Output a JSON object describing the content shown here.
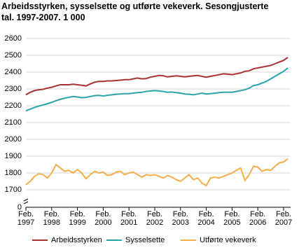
{
  "chart_data": {
    "type": "line",
    "title": "Arbeidsstyrken, sysselsette og utførte vekeverk. Sesongjusterte tal. 1997-2007. 1 000",
    "categories": [
      "Feb. 1997",
      null,
      null,
      null,
      null,
      null,
      "Feb. 1998",
      null,
      null,
      null,
      null,
      null,
      "Feb. 1999",
      null,
      null,
      null,
      null,
      null,
      "Feb. 2000",
      null,
      null,
      null,
      null,
      null,
      "Feb. 2001",
      null,
      null,
      null,
      null,
      null,
      "Feb. 2002",
      null,
      null,
      null,
      null,
      null,
      "Feb. 2003",
      null,
      null,
      null,
      null,
      null,
      "Feb. 2004",
      null,
      null,
      null,
      null,
      null,
      "Feb. 2005",
      null,
      null,
      null,
      null,
      null,
      "Feb. 2006",
      null,
      null,
      null,
      null,
      null,
      "Feb. 2007",
      null
    ],
    "series": [
      {
        "name": "Arbeidsstyrken",
        "color": "#a8322e",
        "values": [
          2265,
          2280,
          2290,
          2295,
          2298,
          2305,
          2310,
          2318,
          2325,
          2325,
          2325,
          2328,
          2325,
          2322,
          2318,
          2330,
          2340,
          2345,
          2345,
          2348,
          2348,
          2350,
          2352,
          2355,
          2355,
          2360,
          2365,
          2360,
          2362,
          2370,
          2375,
          2380,
          2378,
          2372,
          2375,
          2378,
          2375,
          2372,
          2375,
          2378,
          2380,
          2375,
          2370,
          2375,
          2380,
          2385,
          2390,
          2388,
          2385,
          2390,
          2395,
          2405,
          2408,
          2420,
          2425,
          2430,
          2435,
          2440,
          2450,
          2460,
          2470,
          2488
        ]
      },
      {
        "name": "Sysselsette",
        "color": "#2aa3ab",
        "values": [
          2170,
          2180,
          2190,
          2198,
          2205,
          2212,
          2220,
          2230,
          2238,
          2245,
          2250,
          2255,
          2252,
          2248,
          2250,
          2255,
          2260,
          2262,
          2258,
          2262,
          2265,
          2268,
          2270,
          2272,
          2272,
          2275,
          2278,
          2280,
          2285,
          2288,
          2290,
          2288,
          2285,
          2280,
          2282,
          2278,
          2275,
          2270,
          2268,
          2265,
          2270,
          2275,
          2270,
          2272,
          2275,
          2278,
          2280,
          2280,
          2280,
          2285,
          2290,
          2295,
          2305,
          2320,
          2325,
          2335,
          2345,
          2360,
          2375,
          2390,
          2405,
          2425
        ]
      },
      {
        "name": "Utførte vekeverk",
        "color": "#f5ae4a",
        "values": [
          1730,
          1750,
          1780,
          1795,
          1790,
          1770,
          1800,
          1850,
          1830,
          1810,
          1815,
          1800,
          1820,
          1800,
          1765,
          1790,
          1810,
          1800,
          1805,
          1785,
          1790,
          1805,
          1810,
          1790,
          1800,
          1805,
          1790,
          1775,
          1790,
          1785,
          1790,
          1780,
          1770,
          1785,
          1775,
          1760,
          1750,
          1770,
          1790,
          1760,
          1770,
          1740,
          1725,
          1770,
          1775,
          1770,
          1780,
          1790,
          1800,
          1815,
          1830,
          1755,
          1790,
          1840,
          1835,
          1810,
          1820,
          1815,
          1840,
          1860,
          1865,
          1885
        ]
      }
    ],
    "ylim": [
      0,
      2600
    ],
    "yticks": [
      0,
      1700,
      1800,
      1900,
      2000,
      2100,
      2200,
      2300,
      2400,
      2500,
      2600
    ],
    "yticks_labels_note": null,
    "axis_break": true,
    "grid": true,
    "legend": "bottom"
  }
}
